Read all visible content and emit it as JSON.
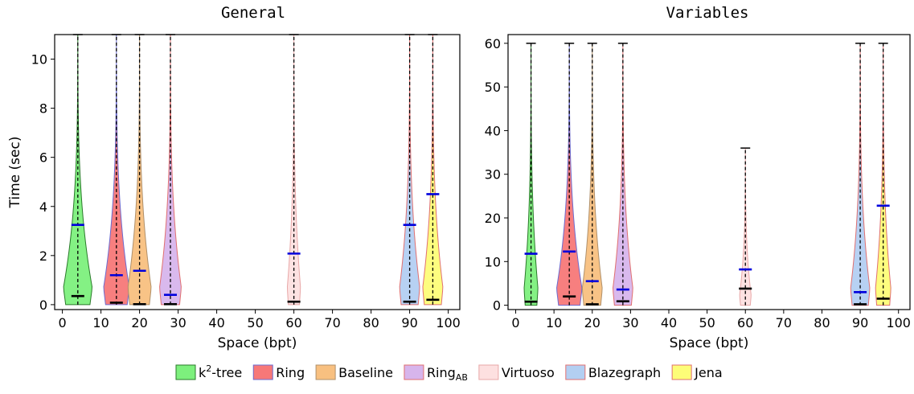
{
  "chart_data": [
    {
      "type": "violin",
      "title": "General",
      "xlabel": "Space (bpt)",
      "ylabel": "Time (sec)",
      "xlim": [
        -2,
        103
      ],
      "ylim": [
        -0.2,
        11
      ],
      "xticks": [
        0,
        10,
        20,
        30,
        40,
        50,
        60,
        70,
        80,
        90,
        100
      ],
      "yticks": [
        0,
        2,
        4,
        6,
        8,
        10
      ],
      "grid": false,
      "series": [
        {
          "name": "k²-tree",
          "x": 4,
          "max": 11,
          "mean": 3.25,
          "median": 0.35,
          "width": 3.7
        },
        {
          "name": "Ring",
          "x": 14,
          "max": 11,
          "mean": 1.2,
          "median": 0.08,
          "width": 3.3
        },
        {
          "name": "Baseline",
          "x": 20,
          "max": 11,
          "mean": 1.38,
          "median": 0.02,
          "width": 3.0
        },
        {
          "name": "RingAB",
          "x": 28,
          "max": 11,
          "mean": 0.4,
          "median": 0.02,
          "width": 2.8
        },
        {
          "name": "Virtuoso",
          "x": 60,
          "max": 11,
          "mean": 2.08,
          "median": 0.12,
          "width": 1.7
        },
        {
          "name": "Blazegraph",
          "x": 90,
          "max": 11,
          "mean": 3.25,
          "median": 0.12,
          "width": 2.6
        },
        {
          "name": "Jena",
          "x": 96,
          "max": 11,
          "mean": 4.5,
          "median": 0.2,
          "width": 2.6
        }
      ]
    },
    {
      "type": "violin",
      "title": "Variables",
      "xlabel": "Space (bpt)",
      "ylabel": "",
      "xlim": [
        -2,
        103
      ],
      "ylim": [
        -1,
        62
      ],
      "xticks": [
        0,
        10,
        20,
        30,
        40,
        50,
        60,
        70,
        80,
        90,
        100
      ],
      "yticks": [
        0,
        10,
        20,
        30,
        40,
        50,
        60
      ],
      "grid": false,
      "series": [
        {
          "name": "k²-tree",
          "x": 4,
          "max": 60,
          "mean": 11.8,
          "median": 0.8,
          "width": 1.8
        },
        {
          "name": "Ring",
          "x": 14,
          "max": 60,
          "mean": 12.3,
          "median": 2.0,
          "width": 3.3
        },
        {
          "name": "Baseline",
          "x": 20,
          "max": 60,
          "mean": 5.5,
          "median": 0.2,
          "width": 2.6
        },
        {
          "name": "RingAB",
          "x": 28,
          "max": 60,
          "mean": 3.6,
          "median": 0.9,
          "width": 2.6
        },
        {
          "name": "Virtuoso",
          "x": 60,
          "max": 36,
          "mean": 8.2,
          "median": 3.8,
          "width": 1.5
        },
        {
          "name": "Blazegraph",
          "x": 90,
          "max": 60,
          "mean": 3.0,
          "median": 0.2,
          "width": 2.5
        },
        {
          "name": "Jena",
          "x": 96,
          "max": 60,
          "mean": 22.8,
          "median": 1.5,
          "width": 2.0
        }
      ]
    }
  ],
  "legend": {
    "placement": "bottom-center",
    "items": [
      {
        "base": "k",
        "sup": "2",
        "rest": "-tree",
        "fill": "#7df07d",
        "edge": "#2a7a2a"
      },
      {
        "base": "Ring",
        "sub": "",
        "fill": "#f77878",
        "edge": "#6b6bd0"
      },
      {
        "base": "Baseline",
        "sub": "",
        "fill": "#f8c080",
        "edge": "#b0906a"
      },
      {
        "base": "Ring",
        "sub": "AB",
        "fill": "#d7b5ec",
        "edge": "#e07070"
      },
      {
        "base": "Virtuoso",
        "sub": "",
        "fill": "#fde0e0",
        "edge": "#e8a8a8"
      },
      {
        "base": "Blazegraph",
        "sub": "",
        "fill": "#b3cff2",
        "edge": "#e07070"
      },
      {
        "base": "Jena",
        "sub": "",
        "fill": "#fdfd78",
        "edge": "#e07070"
      }
    ]
  },
  "colors": {
    "mean_line": "#0000dd",
    "median_line": "#000000",
    "whisker": "#000000"
  }
}
